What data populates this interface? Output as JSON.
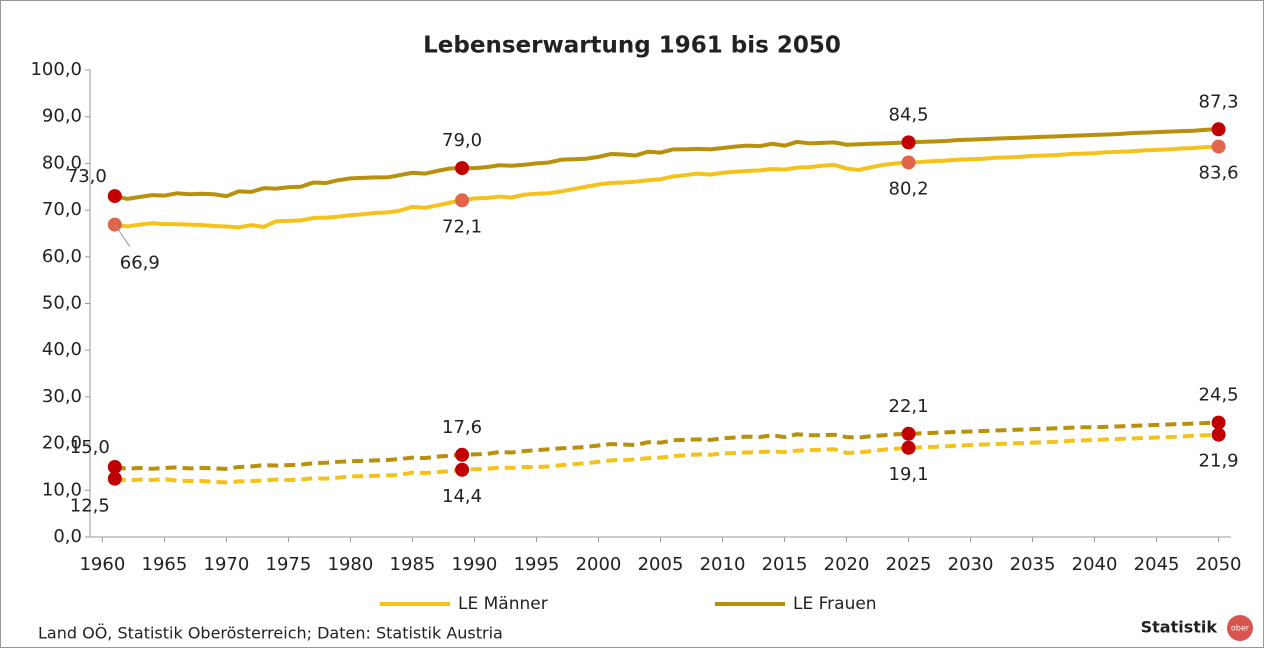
{
  "chart_data": {
    "type": "line",
    "title": "Lebenserwartung 1961 bis 2050",
    "x": [
      1961,
      1962,
      1963,
      1964,
      1965,
      1966,
      1967,
      1968,
      1969,
      1970,
      1971,
      1972,
      1973,
      1974,
      1975,
      1976,
      1977,
      1978,
      1979,
      1980,
      1981,
      1982,
      1983,
      1984,
      1985,
      1986,
      1987,
      1988,
      1989,
      1990,
      1991,
      1992,
      1993,
      1994,
      1995,
      1996,
      1997,
      1998,
      1999,
      2000,
      2001,
      2002,
      2003,
      2004,
      2005,
      2006,
      2007,
      2008,
      2009,
      2010,
      2011,
      2012,
      2013,
      2014,
      2015,
      2016,
      2017,
      2018,
      2019,
      2020,
      2021,
      2022,
      2023,
      2024,
      2025,
      2026,
      2027,
      2028,
      2029,
      2030,
      2031,
      2032,
      2033,
      2034,
      2035,
      2036,
      2037,
      2038,
      2039,
      2040,
      2041,
      2042,
      2043,
      2044,
      2045,
      2046,
      2047,
      2048,
      2049,
      2050
    ],
    "series": [
      {
        "name": "LE Männer",
        "color": "#f5c21a",
        "marker_color": "#e0654a",
        "dashed": false,
        "values": [
          66.9,
          66.5,
          66.9,
          67.2,
          67.0,
          67.0,
          66.9,
          66.8,
          66.6,
          66.5,
          66.3,
          66.8,
          66.4,
          67.6,
          67.7,
          67.8,
          68.3,
          68.4,
          68.6,
          68.9,
          69.1,
          69.4,
          69.5,
          69.9,
          70.7,
          70.5,
          71.0,
          71.6,
          72.1,
          72.5,
          72.6,
          72.9,
          72.7,
          73.3,
          73.5,
          73.6,
          74.0,
          74.5,
          75.0,
          75.5,
          75.8,
          75.9,
          76.1,
          76.4,
          76.6,
          77.2,
          77.5,
          77.8,
          77.6,
          78.0,
          78.2,
          78.4,
          78.5,
          78.8,
          78.7,
          79.1,
          79.2,
          79.5,
          79.7,
          78.9,
          78.6,
          79.2,
          79.7,
          80.0,
          80.2,
          80.3,
          80.5,
          80.6,
          80.8,
          80.9,
          81.0,
          81.2,
          81.3,
          81.4,
          81.6,
          81.7,
          81.8,
          82.0,
          82.1,
          82.2,
          82.4,
          82.5,
          82.6,
          82.8,
          82.9,
          83.0,
          83.2,
          83.3,
          83.5,
          83.6
        ],
        "value_labels": [
          "66,9",
          null,
          null,
          null,
          null,
          null,
          null,
          null,
          null,
          null,
          null,
          null,
          null,
          null,
          null,
          null,
          null,
          null,
          null,
          null,
          null,
          null,
          null,
          null,
          null,
          null,
          null,
          null,
          "72,1",
          null,
          null,
          null,
          null,
          null,
          null,
          null,
          null,
          null,
          null,
          null,
          null,
          null,
          null,
          null,
          null,
          null,
          null,
          null,
          null,
          null,
          null,
          null,
          null,
          null,
          null,
          null,
          null,
          null,
          null,
          null,
          null,
          null,
          null,
          null,
          "80,2",
          null,
          null,
          null,
          null,
          null,
          null,
          null,
          null,
          null,
          null,
          null,
          null,
          null,
          null,
          null,
          null,
          null,
          null,
          null,
          null,
          null,
          null,
          null,
          null,
          "83,6"
        ]
      },
      {
        "name": "LE Frauen",
        "color": "#b8900c",
        "marker_color": "#c00000",
        "dashed": false,
        "values": [
          73.0,
          72.4,
          72.8,
          73.2,
          73.1,
          73.6,
          73.4,
          73.5,
          73.4,
          73.0,
          74.0,
          73.9,
          74.7,
          74.6,
          74.9,
          75.0,
          75.9,
          75.8,
          76.4,
          76.8,
          76.9,
          77.0,
          77.0,
          77.5,
          78.0,
          77.8,
          78.4,
          78.9,
          79.0,
          79.0,
          79.2,
          79.6,
          79.5,
          79.7,
          80.0,
          80.2,
          80.8,
          80.9,
          81.0,
          81.4,
          82.0,
          81.9,
          81.7,
          82.5,
          82.3,
          83.0,
          83.0,
          83.1,
          83.0,
          83.3,
          83.6,
          83.8,
          83.7,
          84.2,
          83.8,
          84.6,
          84.3,
          84.4,
          84.5,
          84.0,
          84.1,
          84.2,
          84.3,
          84.4,
          84.5,
          84.6,
          84.7,
          84.8,
          85.0,
          85.1,
          85.2,
          85.3,
          85.4,
          85.5,
          85.6,
          85.7,
          85.8,
          85.9,
          86.0,
          86.1,
          86.2,
          86.3,
          86.5,
          86.6,
          86.7,
          86.8,
          86.9,
          87.0,
          87.2,
          87.3
        ],
        "value_labels": [
          "73,0",
          null,
          null,
          null,
          null,
          null,
          null,
          null,
          null,
          null,
          null,
          null,
          null,
          null,
          null,
          null,
          null,
          null,
          null,
          null,
          null,
          null,
          null,
          null,
          null,
          null,
          null,
          null,
          "79,0",
          null,
          null,
          null,
          null,
          null,
          null,
          null,
          null,
          null,
          null,
          null,
          null,
          null,
          null,
          null,
          null,
          null,
          null,
          null,
          null,
          null,
          null,
          null,
          null,
          null,
          null,
          null,
          null,
          null,
          null,
          null,
          null,
          null,
          null,
          null,
          "84,5",
          null,
          null,
          null,
          null,
          null,
          null,
          null,
          null,
          null,
          null,
          null,
          null,
          null,
          null,
          null,
          null,
          null,
          null,
          null,
          null,
          null,
          null,
          null,
          null,
          "87,3"
        ]
      },
      {
        "color": "#f5c21a",
        "marker_color": "#c00000",
        "dashed": true,
        "values": [
          12.5,
          12.1,
          12.3,
          12.2,
          12.4,
          12.1,
          12.0,
          12.0,
          11.8,
          11.7,
          11.9,
          12.0,
          12.1,
          12.3,
          12.2,
          12.3,
          12.6,
          12.5,
          12.7,
          13.0,
          13.0,
          13.1,
          13.2,
          13.3,
          13.8,
          13.7,
          13.9,
          14.1,
          14.4,
          14.5,
          14.6,
          14.9,
          14.8,
          15.0,
          15.0,
          15.1,
          15.4,
          15.6,
          15.8,
          16.1,
          16.4,
          16.5,
          16.6,
          16.9,
          17.0,
          17.3,
          17.5,
          17.7,
          17.6,
          17.9,
          18.0,
          18.1,
          18.2,
          18.3,
          18.2,
          18.5,
          18.6,
          18.7,
          18.8,
          18.0,
          18.1,
          18.4,
          18.7,
          18.9,
          19.1,
          19.2,
          19.3,
          19.4,
          19.6,
          19.7,
          19.8,
          19.9,
          20.0,
          20.1,
          20.2,
          20.3,
          20.4,
          20.6,
          20.7,
          20.8,
          20.9,
          21.0,
          21.1,
          21.2,
          21.3,
          21.4,
          21.5,
          21.7,
          21.8,
          21.9
        ],
        "value_labels": [
          "12,5",
          null,
          null,
          null,
          null,
          null,
          null,
          null,
          null,
          null,
          null,
          null,
          null,
          null,
          null,
          null,
          null,
          null,
          null,
          null,
          null,
          null,
          null,
          null,
          null,
          null,
          null,
          null,
          "14,4",
          null,
          null,
          null,
          null,
          null,
          null,
          null,
          null,
          null,
          null,
          null,
          null,
          null,
          null,
          null,
          null,
          null,
          null,
          null,
          null,
          null,
          null,
          null,
          null,
          null,
          null,
          null,
          null,
          null,
          null,
          null,
          null,
          null,
          null,
          null,
          "19,1",
          null,
          null,
          null,
          null,
          null,
          null,
          null,
          null,
          null,
          null,
          null,
          null,
          null,
          null,
          null,
          null,
          null,
          null,
          null,
          null,
          null,
          null,
          null,
          null,
          "21,9"
        ]
      },
      {
        "color": "#b8900c",
        "marker_color": "#c00000",
        "dashed": true,
        "values": [
          15.0,
          14.6,
          14.8,
          14.6,
          14.8,
          14.9,
          14.7,
          14.8,
          14.7,
          14.6,
          15.0,
          15.1,
          15.4,
          15.3,
          15.4,
          15.5,
          15.8,
          15.9,
          16.1,
          16.2,
          16.3,
          16.4,
          16.5,
          16.7,
          17.0,
          16.9,
          17.2,
          17.4,
          17.6,
          17.7,
          17.8,
          18.2,
          18.1,
          18.4,
          18.6,
          18.8,
          19.0,
          19.1,
          19.3,
          19.6,
          19.9,
          19.8,
          19.7,
          20.3,
          20.2,
          20.7,
          20.8,
          20.9,
          20.8,
          21.1,
          21.3,
          21.5,
          21.4,
          21.8,
          21.4,
          22.0,
          21.8,
          21.8,
          21.9,
          21.4,
          21.3,
          21.6,
          21.8,
          22.0,
          22.1,
          22.2,
          22.3,
          22.4,
          22.5,
          22.6,
          22.7,
          22.8,
          22.9,
          23.0,
          23.1,
          23.2,
          23.3,
          23.4,
          23.5,
          23.5,
          23.6,
          23.7,
          23.8,
          23.9,
          24.0,
          24.1,
          24.2,
          24.3,
          24.4,
          24.5
        ],
        "value_labels": [
          "15,0",
          null,
          null,
          null,
          null,
          null,
          null,
          null,
          null,
          null,
          null,
          null,
          null,
          null,
          null,
          null,
          null,
          null,
          null,
          null,
          null,
          null,
          null,
          null,
          null,
          null,
          null,
          null,
          "17,6",
          null,
          null,
          null,
          null,
          null,
          null,
          null,
          null,
          null,
          null,
          null,
          null,
          null,
          null,
          null,
          null,
          null,
          null,
          null,
          null,
          null,
          null,
          null,
          null,
          null,
          null,
          null,
          null,
          null,
          null,
          null,
          null,
          null,
          null,
          null,
          "22,1",
          null,
          null,
          null,
          null,
          null,
          null,
          null,
          null,
          null,
          null,
          null,
          null,
          null,
          null,
          null,
          null,
          null,
          null,
          null,
          null,
          null,
          null,
          null,
          null,
          "24,5"
        ]
      }
    ],
    "xlim": [
      1959,
      2051
    ],
    "xticks": [
      1960,
      1965,
      1970,
      1975,
      1980,
      1985,
      1990,
      1995,
      2000,
      2005,
      2010,
      2015,
      2020,
      2025,
      2030,
      2035,
      2040,
      2045,
      2050
    ],
    "ylim": [
      0,
      100
    ],
    "yticks": [
      {
        "value": 0,
        "label": "0,0"
      },
      {
        "value": 10,
        "label": "10,0"
      },
      {
        "value": 20,
        "label": "20,0"
      },
      {
        "value": 30,
        "label": "30,0"
      },
      {
        "value": 40,
        "label": "40,0"
      },
      {
        "value": 50,
        "label": "50,0"
      },
      {
        "value": 60,
        "label": "60,0"
      },
      {
        "value": 70,
        "label": "70,0"
      },
      {
        "value": 80,
        "label": "80,0"
      },
      {
        "value": 90,
        "label": "90,0"
      },
      {
        "value": 100,
        "label": "100,0"
      }
    ],
    "grid": false,
    "legend": "bottom",
    "source": "Land OÖ, Statistik Oberösterreich; Daten: Statistik Austria",
    "logo": "Statistik",
    "logo_sub": "ober"
  }
}
